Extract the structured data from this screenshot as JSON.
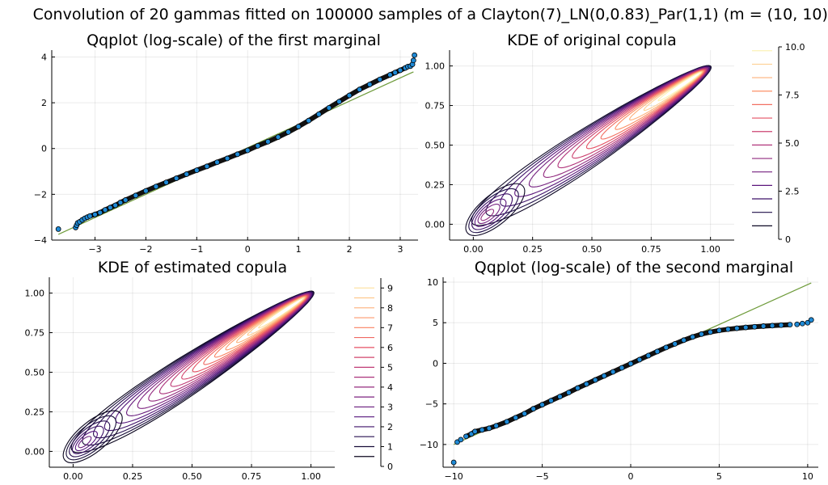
{
  "figure": {
    "title": "Convolution of 20 gammas fitted on 100000 samples of a Clayton(7)_LN(0,0.83)_Par(1,1) (m = (10, 10))"
  },
  "chart_data": [
    {
      "id": "qq1",
      "type": "scatter",
      "title": "Qqplot (log-scale) of the first marginal",
      "xlabel": "",
      "ylabel": "",
      "xlim": [
        -3.85,
        3.35
      ],
      "ylim": [
        -4.0,
        4.3
      ],
      "xticks": [
        -3,
        -2,
        -1,
        0,
        1,
        2,
        3
      ],
      "xtick_labels": [
        "−3",
        "−2",
        "−1",
        "0",
        "1",
        "2",
        "3"
      ],
      "yticks": [
        -4,
        -2,
        0,
        2,
        4
      ],
      "ytick_labels": [
        "−4",
        "−2",
        "0",
        "2",
        "4"
      ],
      "grid": true,
      "reference_line": {
        "x": [
          -3.72,
          3.26
        ],
        "y": [
          -3.75,
          3.35
        ],
        "color": "#6e9b3a"
      },
      "points": {
        "x": [
          -3.72,
          -3.38,
          -3.36,
          -3.34,
          -3.3,
          -3.25,
          -3.2,
          -3.15,
          -3.1,
          -3.0,
          -2.9,
          -2.8,
          -2.7,
          -2.6,
          -2.5,
          -2.4,
          -2.2,
          -2.0,
          -1.8,
          -1.6,
          -1.4,
          -1.2,
          -1.0,
          -0.8,
          -0.6,
          -0.4,
          -0.2,
          0.0,
          0.2,
          0.4,
          0.6,
          0.8,
          1.0,
          1.2,
          1.4,
          1.6,
          1.8,
          2.0,
          2.2,
          2.4,
          2.6,
          2.8,
          2.9,
          3.0,
          3.1,
          3.15,
          3.2,
          3.24,
          3.26,
          3.28
        ],
        "y": [
          -3.52,
          -3.45,
          -3.35,
          -3.25,
          -3.2,
          -3.12,
          -3.05,
          -3.0,
          -2.95,
          -2.88,
          -2.8,
          -2.68,
          -2.58,
          -2.48,
          -2.36,
          -2.25,
          -2.05,
          -1.85,
          -1.66,
          -1.48,
          -1.3,
          -1.12,
          -0.95,
          -0.78,
          -0.6,
          -0.43,
          -0.25,
          -0.08,
          0.12,
          0.3,
          0.5,
          0.72,
          0.96,
          1.22,
          1.5,
          1.78,
          2.05,
          2.32,
          2.58,
          2.8,
          3.02,
          3.22,
          3.32,
          3.42,
          3.52,
          3.58,
          3.6,
          3.68,
          3.85,
          4.08
        ],
        "color": "#1f8ad6"
      }
    },
    {
      "id": "kde_orig",
      "type": "contour",
      "title": "KDE of original copula",
      "xlabel": "",
      "ylabel": "",
      "xlim": [
        -0.1,
        1.1
      ],
      "ylim": [
        -0.1,
        1.1
      ],
      "xticks": [
        0,
        0.25,
        0.5,
        0.75,
        1.0
      ],
      "xtick_labels": [
        "0.00",
        "0.25",
        "0.50",
        "0.75",
        "1.00"
      ],
      "yticks": [
        0,
        0.25,
        0.5,
        0.75,
        1.0
      ],
      "ytick_labels": [
        "0.00",
        "0.25",
        "0.50",
        "0.75",
        "1.00"
      ],
      "grid": true,
      "colorbar": {
        "min": 0,
        "max": 10,
        "ticks": [
          0,
          2.5,
          5.0,
          7.5,
          10.0
        ],
        "tick_labels": [
          "0",
          "2.5",
          "5.0",
          "7.5",
          "10.0"
        ],
        "levels": [
          0.7,
          1.4,
          2.1,
          2.8,
          3.5,
          4.2,
          4.9,
          5.6,
          6.3,
          7.0,
          7.7,
          8.4,
          9.1,
          9.8
        ]
      },
      "density": {
        "ridge_peak": [
          0.96,
          0.96
        ],
        "ridge_peak_value": 10.0,
        "corner_peak": [
          0.05,
          0.05
        ],
        "corner_peak_value": 5.5
      }
    },
    {
      "id": "kde_est",
      "type": "contour",
      "title": "KDE of estimated copula",
      "xlabel": "",
      "ylabel": "",
      "xlim": [
        -0.1,
        1.1
      ],
      "ylim": [
        -0.1,
        1.1
      ],
      "xticks": [
        0,
        0.25,
        0.5,
        0.75,
        1.0
      ],
      "xtick_labels": [
        "0.00",
        "0.25",
        "0.50",
        "0.75",
        "1.00"
      ],
      "yticks": [
        0,
        0.25,
        0.5,
        0.75,
        1.0
      ],
      "ytick_labels": [
        "0.00",
        "0.25",
        "0.50",
        "0.75",
        "1.00"
      ],
      "grid": true,
      "colorbar": {
        "min": 0,
        "max": 9.5,
        "ticks": [
          0,
          1,
          2,
          3,
          4,
          5,
          6,
          7,
          8,
          9
        ],
        "tick_labels": [
          "0",
          "1",
          "2",
          "3",
          "4",
          "5",
          "6",
          "7",
          "8",
          "9"
        ],
        "levels": [
          0.5,
          1,
          1.5,
          2,
          2.5,
          3,
          3.5,
          4,
          4.5,
          5,
          5.5,
          6,
          6.5,
          7,
          7.5,
          8,
          8.5,
          9
        ]
      },
      "density": {
        "ridge_peak": [
          0.97,
          0.97
        ],
        "ridge_peak_value": 9.3,
        "corner_peak": [
          0.04,
          0.05
        ],
        "corner_peak_value": 4.5
      }
    },
    {
      "id": "qq2",
      "type": "scatter",
      "title": "Qqplot (log-scale) of the second marginal",
      "xlabel": "",
      "ylabel": "",
      "xlim": [
        -10.6,
        10.6
      ],
      "ylim": [
        -12.8,
        10.6
      ],
      "xticks": [
        -10,
        -5,
        0,
        5,
        10
      ],
      "xtick_labels": [
        "−10",
        "−5",
        "0",
        "5",
        "10"
      ],
      "yticks": [
        -10,
        -5,
        0,
        5,
        10
      ],
      "ytick_labels": [
        "−10",
        "−5",
        "0",
        "5",
        "10"
      ],
      "grid": true,
      "reference_line": {
        "x": [
          -10.0,
          10.2
        ],
        "y": [
          -10.0,
          9.9
        ],
        "color": "#6e9b3a"
      },
      "points": {
        "x": [
          -10.0,
          -9.8,
          -9.6,
          -9.3,
          -9.0,
          -8.8,
          -8.4,
          -8.0,
          -7.6,
          -7.0,
          -6.5,
          -6.0,
          -5.5,
          -5.0,
          -4.5,
          -4.0,
          -3.5,
          -3.0,
          -2.5,
          -2.0,
          -1.5,
          -1.0,
          -0.5,
          0.0,
          0.5,
          1.0,
          1.5,
          2.0,
          2.5,
          3.0,
          3.5,
          4.0,
          4.5,
          5.0,
          5.5,
          6.0,
          6.5,
          7.0,
          7.5,
          8.0,
          8.5,
          9.0,
          9.4,
          9.7,
          10.0,
          10.2
        ],
        "y": [
          -12.2,
          -9.7,
          -9.4,
          -9.0,
          -8.7,
          -8.4,
          -8.2,
          -8.0,
          -7.7,
          -7.2,
          -6.7,
          -6.2,
          -5.6,
          -5.1,
          -4.6,
          -4.1,
          -3.6,
          -3.05,
          -2.55,
          -2.05,
          -1.55,
          -1.05,
          -0.55,
          -0.05,
          0.45,
          0.95,
          1.45,
          1.95,
          2.4,
          2.85,
          3.25,
          3.6,
          3.85,
          4.05,
          4.2,
          4.32,
          4.42,
          4.5,
          4.58,
          4.64,
          4.7,
          4.76,
          4.8,
          4.9,
          5.0,
          5.35
        ],
        "color": "#1f8ad6"
      }
    }
  ]
}
